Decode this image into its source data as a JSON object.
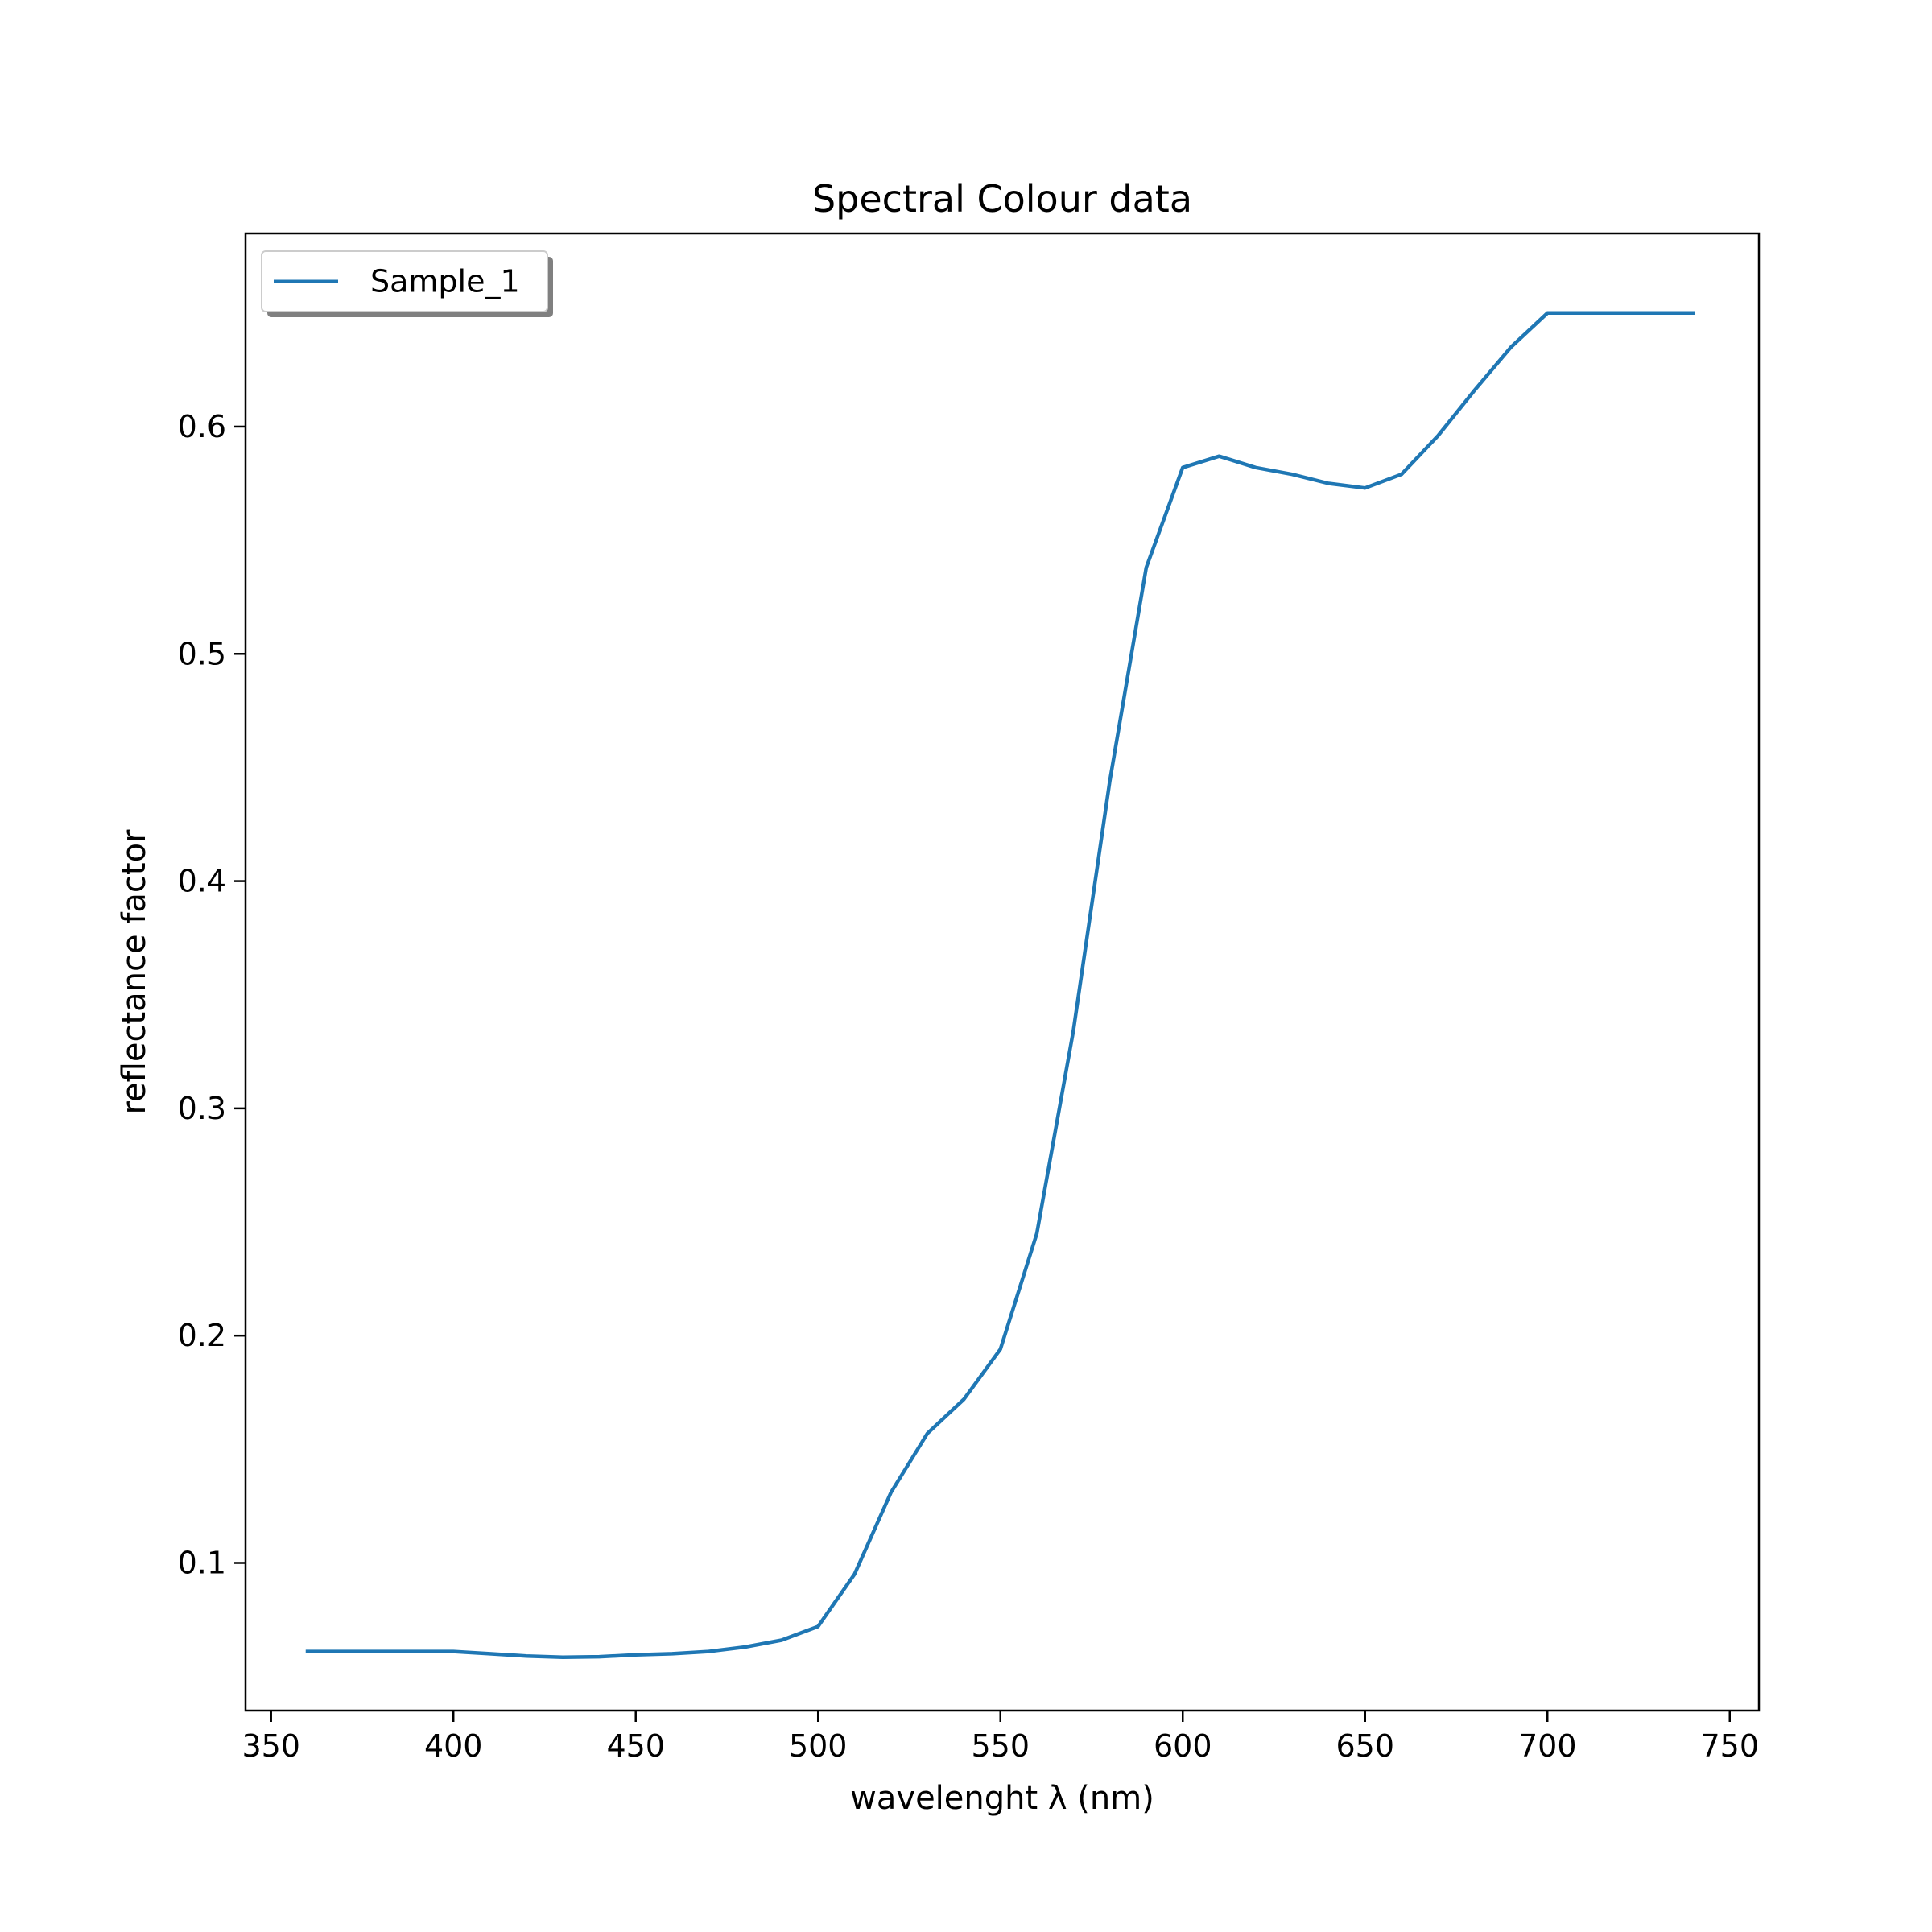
{
  "chart_data": {
    "type": "line",
    "title": "Spectral Colour data",
    "xlabel": "wavelenght λ (nm)",
    "ylabel": "reflectance factor",
    "xlim": [
      343,
      758
    ],
    "ylim": [
      0.035,
      0.685
    ],
    "xticks": [
      350,
      400,
      450,
      500,
      550,
      600,
      650,
      700,
      750
    ],
    "yticks": [
      0.1,
      0.2,
      0.3,
      0.4,
      0.5,
      0.6
    ],
    "xtick_labels": [
      "350",
      "400",
      "450",
      "500",
      "550",
      "600",
      "650",
      "700",
      "750"
    ],
    "ytick_labels": [
      "0.1",
      "0.2",
      "0.3",
      "0.4",
      "0.5",
      "0.6"
    ],
    "grid": false,
    "legend_position": "top-left",
    "legend_shadow": true,
    "series": [
      {
        "name": "Sample_1",
        "color": "#1f77b4",
        "x": [
          360,
          370,
          380,
          390,
          400,
          410,
          420,
          430,
          440,
          450,
          460,
          470,
          480,
          490,
          500,
          510,
          520,
          530,
          540,
          550,
          560,
          570,
          580,
          590,
          600,
          610,
          620,
          630,
          640,
          650,
          660,
          670,
          680,
          690,
          700,
          710,
          720,
          730,
          740
        ],
        "y": [
          0.061,
          0.061,
          0.061,
          0.061,
          0.061,
          0.06,
          0.059,
          0.0585,
          0.0587,
          0.0595,
          0.06,
          0.061,
          0.063,
          0.066,
          0.072,
          0.095,
          0.131,
          0.157,
          0.172,
          0.194,
          0.245,
          0.334,
          0.444,
          0.538,
          0.582,
          0.587,
          0.582,
          0.579,
          0.575,
          0.573,
          0.579,
          0.596,
          0.616,
          0.635,
          0.65,
          0.65,
          0.65,
          0.65,
          0.65
        ]
      }
    ]
  }
}
